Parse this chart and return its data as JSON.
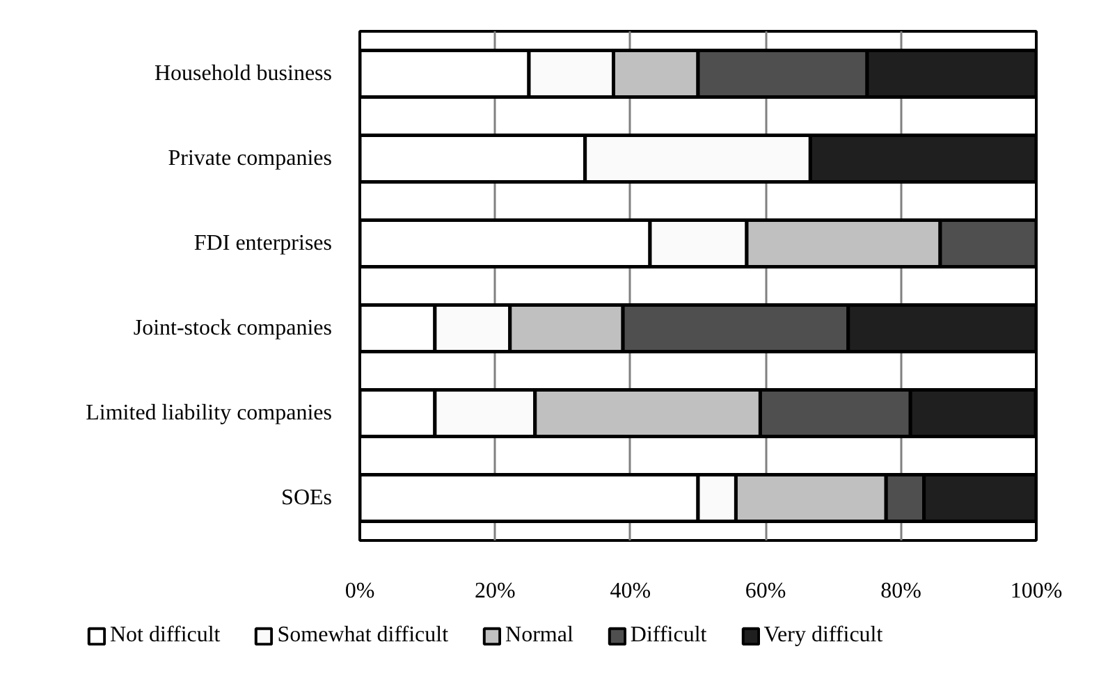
{
  "chart_data": {
    "type": "bar",
    "orientation": "horizontal",
    "stacked": true,
    "categories": [
      "Household business",
      "Private companies",
      "FDI enterprises",
      "Joint-stock companies",
      "Limited liability companies",
      "SOEs"
    ],
    "series": [
      {
        "name": "Not difficult",
        "color": "#ffffff",
        "values": [
          25,
          33.3,
          42.9,
          11.1,
          11.1,
          50
        ]
      },
      {
        "name": "Somewhat difficult",
        "color": "#fafafa",
        "values": [
          12.5,
          33.3,
          14.3,
          11.1,
          14.8,
          5.6
        ]
      },
      {
        "name": "Normal",
        "color": "#c0c0c0",
        "values": [
          12.5,
          0,
          28.6,
          16.7,
          33.3,
          22.2
        ]
      },
      {
        "name": "Difficult",
        "color": "#4f4f4f",
        "values": [
          25,
          0,
          14.3,
          33.3,
          22.2,
          5.6
        ]
      },
      {
        "name": "Very difficult",
        "color": "#1f1f1f",
        "values": [
          25,
          33.4,
          0,
          27.8,
          18.5,
          16.7
        ]
      }
    ],
    "xlim": [
      0,
      100
    ],
    "xticks": [
      {
        "value": 0,
        "label": "0%"
      },
      {
        "value": 20,
        "label": "20%"
      },
      {
        "value": 40,
        "label": "40%"
      },
      {
        "value": 60,
        "label": "60%"
      },
      {
        "value": 80,
        "label": "80%"
      },
      {
        "value": 100,
        "label": "100%"
      }
    ],
    "grid": "x",
    "legend": "bottom"
  }
}
